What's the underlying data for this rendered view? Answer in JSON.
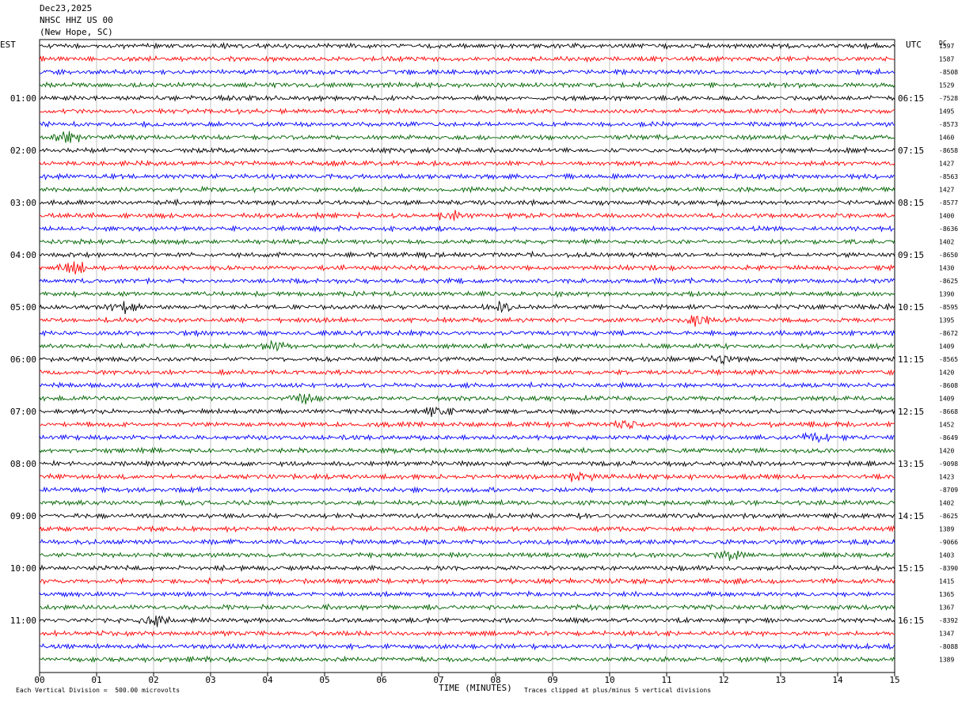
{
  "header": {
    "date": "Dec23,2025",
    "station": "NHSC HHZ US 00",
    "location": "(New Hope, SC)"
  },
  "axes": {
    "left_tz": "EST",
    "right_tz": "UTC",
    "dc_label": "DC"
  },
  "footer": {
    "scale": "Each Vertical Division =  500.00 microvolts",
    "xlabel": "TIME (MINUTES)",
    "clip": "Traces clipped at plus/minus 5 vertical divisions"
  },
  "chart_data": {
    "type": "line",
    "title": "",
    "xlabel": "TIME (MINUTES)",
    "ylabel": "",
    "xlim": [
      0,
      15
    ],
    "x_ticks": [
      "00",
      "01",
      "02",
      "03",
      "04",
      "05",
      "06",
      "07",
      "08",
      "09",
      "10",
      "11",
      "12",
      "13",
      "14",
      "15"
    ],
    "grid": "vertical lines at each minute",
    "trace_colors": [
      "#000000",
      "#ff0000",
      "#0000ff",
      "#006400"
    ],
    "left_hour_labels": [
      "01:00",
      "02:00",
      "03:00",
      "04:00",
      "05:00",
      "06:00",
      "07:00",
      "08:00",
      "09:00",
      "10:00",
      "11:00"
    ],
    "right_hour_labels": [
      "06:15",
      "07:15",
      "08:15",
      "09:15",
      "10:15",
      "11:15",
      "12:15",
      "13:15",
      "14:15",
      "15:15",
      "16:15"
    ],
    "dc_offsets": [
      "1597",
      "1587",
      "-8508",
      "1529",
      "-7528",
      "1495",
      "-8573",
      "1460",
      "-8658",
      "1427",
      "-8563",
      "1427",
      "-8577",
      "1400",
      "-8636",
      "1402",
      "-8650",
      "1430",
      "-8625",
      "1390",
      "-8595",
      "1395",
      "-8672",
      "1409",
      "-8565",
      "1420",
      "-8608",
      "1409",
      "-8668",
      "1452",
      "-8649",
      "1420",
      "-9098",
      "1423",
      "-8709",
      "1402",
      "-8625",
      "1389",
      "-9066",
      "1403",
      "-8390",
      "1415",
      "1365",
      "1367",
      "-8392",
      "1347",
      "-8088",
      "1389"
    ],
    "event_bursts": [
      {
        "trace": 7,
        "minute": 0.5
      },
      {
        "trace": 13,
        "minute": 7.2
      },
      {
        "trace": 17,
        "minute": 0.6
      },
      {
        "trace": 20,
        "minute": 1.5
      },
      {
        "trace": 20,
        "minute": 8.1
      },
      {
        "trace": 21,
        "minute": 11.5
      },
      {
        "trace": 23,
        "minute": 4.1
      },
      {
        "trace": 24,
        "minute": 12.0
      },
      {
        "trace": 27,
        "minute": 4.6
      },
      {
        "trace": 28,
        "minute": 7.0
      },
      {
        "trace": 29,
        "minute": 10.3
      },
      {
        "trace": 30,
        "minute": 13.6
      },
      {
        "trace": 33,
        "minute": 9.5
      },
      {
        "trace": 39,
        "minute": 12.1
      },
      {
        "trace": 44,
        "minute": 2.0
      }
    ]
  }
}
